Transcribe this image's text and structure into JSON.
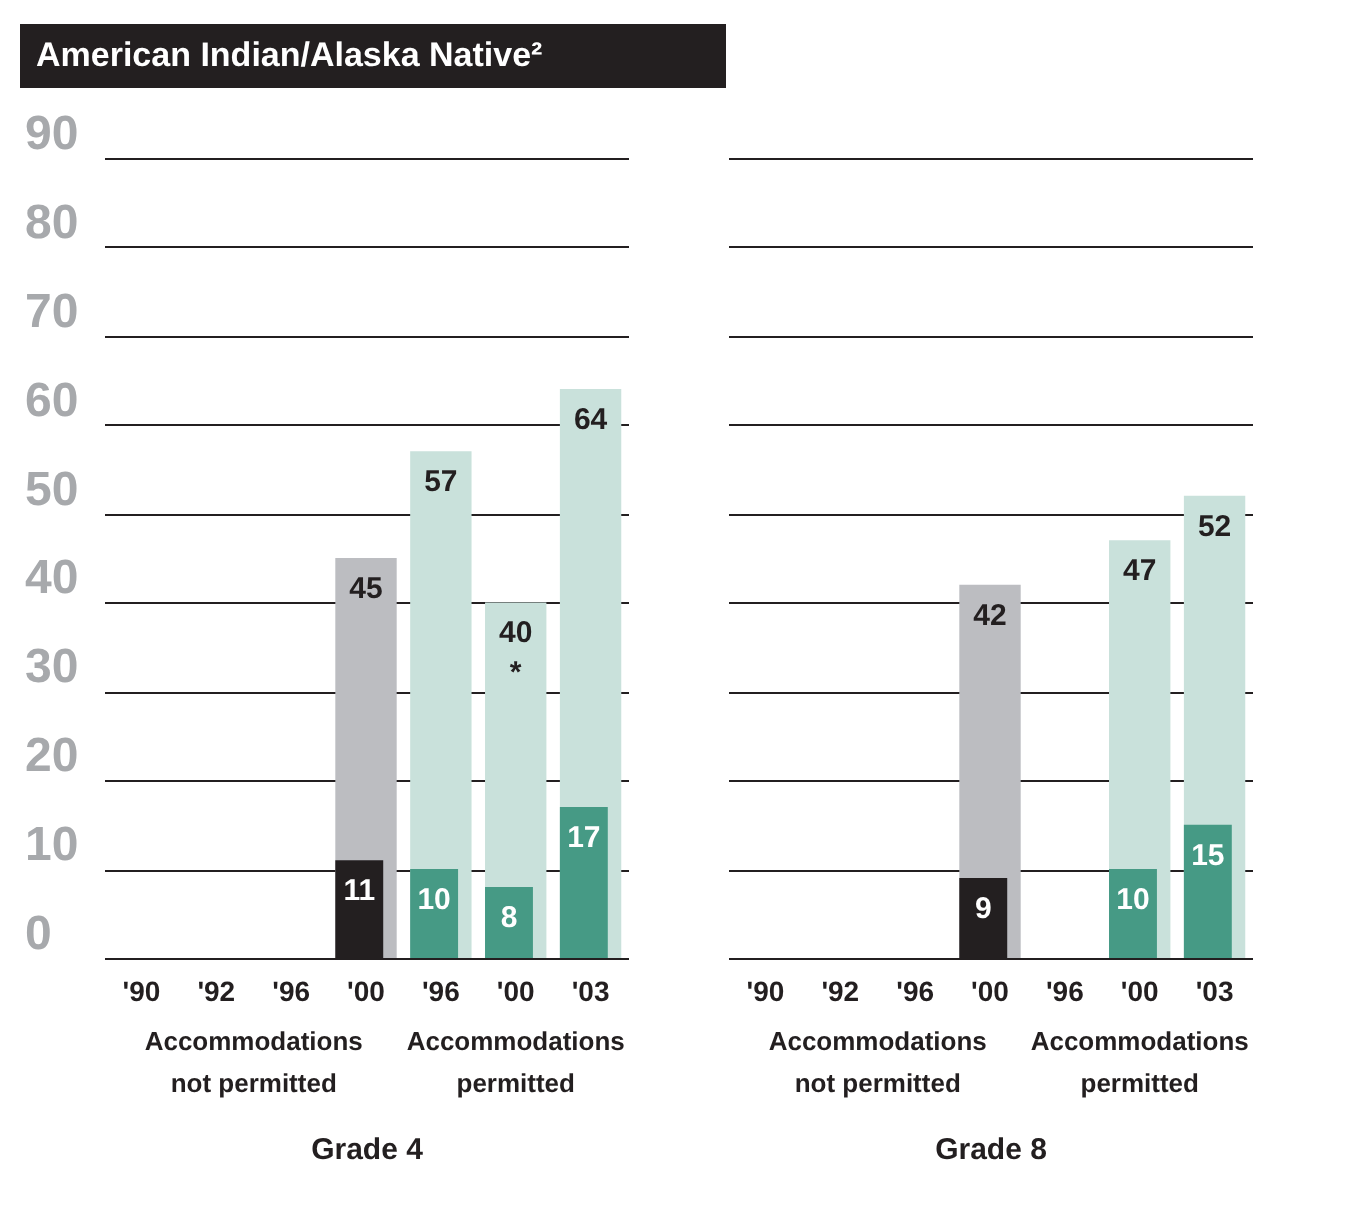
{
  "chart_data": [
    {
      "type": "bar",
      "title": "American Indian/Alaska Native²",
      "xlabel": "Grade 4",
      "categories": [
        "'90",
        "'92",
        "'96",
        "'00",
        "'96",
        "'00",
        "'03"
      ],
      "ylim": [
        0,
        90
      ],
      "yticks": [
        0,
        10,
        20,
        30,
        40,
        50,
        60,
        70,
        80,
        90
      ],
      "grid": "y",
      "annotations": [
        "Accommodations not permitted",
        "Accommodations permitted"
      ],
      "series": [
        {
          "colors": [
            "#bcbdc1",
            "#bcbdc1",
            "#bcbdc1",
            "#bcbdc1",
            "#c9e1db",
            "#c9e1db",
            "#c9e1db"
          ],
          "values": [
            null,
            null,
            null,
            45,
            57,
            40,
            64
          ],
          "value_labels": [
            null,
            null,
            null,
            "45",
            "57",
            "40\n*",
            "64"
          ]
        },
        {
          "colors": [
            "#231f20",
            "#231f20",
            "#231f20",
            "#231f20",
            "#469a85",
            "#469a85",
            "#469a85"
          ],
          "values": [
            null,
            null,
            null,
            11,
            10,
            8,
            17
          ],
          "value_labels": [
            null,
            null,
            null,
            "11",
            "10",
            "8",
            "17"
          ]
        }
      ]
    },
    {
      "type": "bar",
      "xlabel": "Grade 8",
      "categories": [
        "'90",
        "'92",
        "'96",
        "'00",
        "'96",
        "'00",
        "'03"
      ],
      "ylim": [
        0,
        90
      ],
      "yticks": [
        0,
        10,
        20,
        30,
        40,
        50,
        60,
        70,
        80,
        90
      ],
      "grid": "y",
      "tick_labels": "x",
      "annotations": [
        "Accommodations not permitted",
        "Accommodations permitted"
      ],
      "series": [
        {
          "colors": [
            "#bcbdc1",
            "#bcbdc1",
            "#bcbdc1",
            "#bcbdc1",
            "#c9e1db",
            "#c9e1db",
            "#c9e1db"
          ],
          "values": [
            null,
            null,
            null,
            42,
            null,
            47,
            52
          ],
          "value_labels": [
            null,
            null,
            null,
            "42",
            null,
            "47",
            "52"
          ]
        },
        {
          "colors": [
            "#231f20",
            "#231f20",
            "#231f20",
            "#231f20",
            "#469a85",
            "#469a85",
            "#469a85"
          ],
          "values": [
            null,
            null,
            null,
            9,
            null,
            10,
            15
          ],
          "value_labels": [
            null,
            null,
            null,
            "9",
            null,
            "10",
            "15"
          ]
        }
      ]
    }
  ]
}
